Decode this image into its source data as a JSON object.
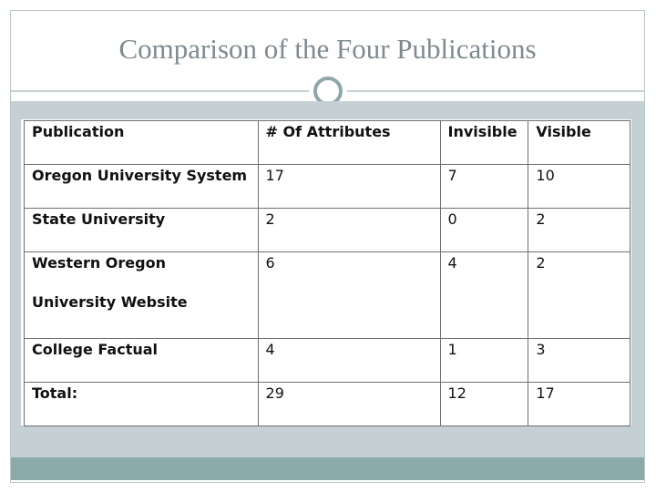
{
  "slide": {
    "title": "Comparison of the Four Publications"
  },
  "table": {
    "headers": [
      "Publication",
      "# Of Attributes",
      "Invisible",
      "Visible"
    ],
    "rows": [
      {
        "publication": "Oregon University System",
        "publication_line2": "",
        "attributes": "17",
        "invisible": "7",
        "visible": "10"
      },
      {
        "publication": "State University",
        "publication_line2": "",
        "attributes": "2",
        "invisible": "0",
        "visible": "2"
      },
      {
        "publication": "Western Oregon",
        "publication_line2": "University Website",
        "attributes": "6",
        "invisible": "4",
        "visible": "2"
      },
      {
        "publication": "College Factual",
        "publication_line2": "",
        "attributes": "4",
        "invisible": "1",
        "visible": "3"
      },
      {
        "publication": "Total:",
        "publication_line2": "",
        "attributes": "29",
        "invisible": "12",
        "visible": "17"
      }
    ]
  },
  "colors": {
    "title": "#7f8a8f",
    "band": "#c5d0d4",
    "footer": "#8caaa9",
    "ring": "#8fa6ab"
  }
}
